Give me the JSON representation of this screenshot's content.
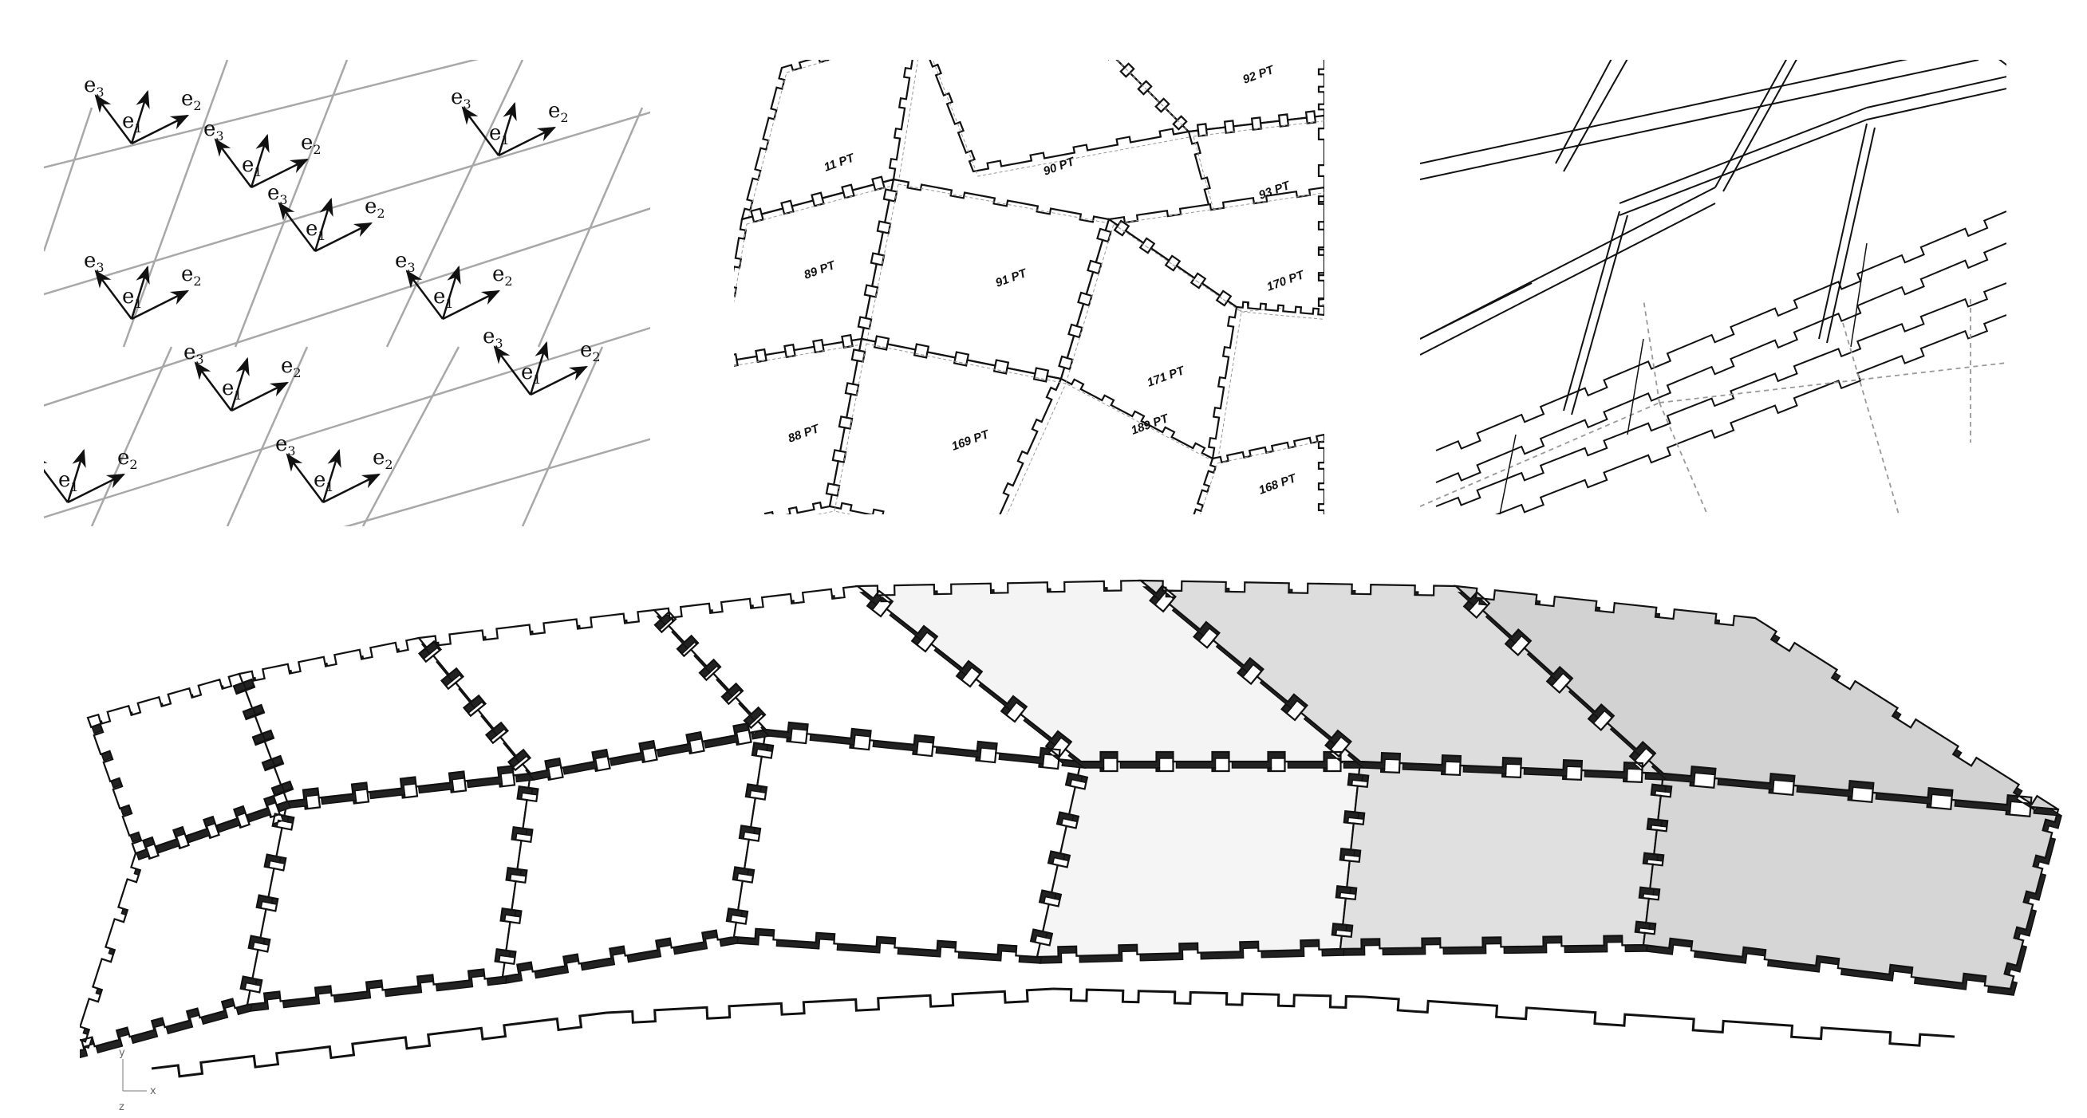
{
  "figure": {
    "panels": [
      {
        "id": "local-frames",
        "vector_labels": [
          "e1",
          "e2",
          "e3"
        ]
      },
      {
        "id": "part-labels",
        "part_labels": [
          "11 PT",
          "90 PT",
          "92 PT",
          "93 PT",
          "89 PT",
          "91 PT",
          "170 PT",
          "88 PT",
          "169 PT",
          "171 PT",
          "168 PT",
          "189 PT"
        ]
      },
      {
        "id": "joint-detail"
      }
    ],
    "axis_indicator": {
      "y": "y",
      "x": "x",
      "z": "z"
    },
    "colors": {
      "line": "#111111",
      "mesh": "#a8a8a8",
      "panel_fill": "#ffffff",
      "panel_shade": "#dedede",
      "dashed": "#999999"
    }
  }
}
